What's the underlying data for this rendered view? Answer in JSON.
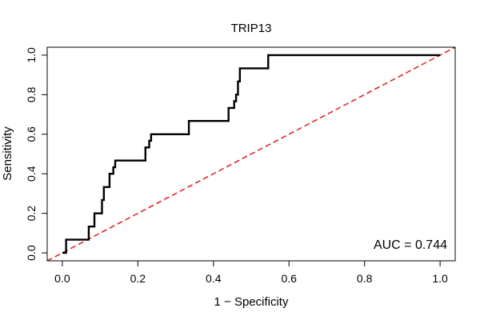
{
  "chart_data": {
    "type": "line",
    "title": "TRIP13",
    "xlabel": "1 − Specificity",
    "ylabel": "Sensitivity",
    "xlim": [
      -0.04,
      1.04
    ],
    "ylim": [
      -0.04,
      1.04
    ],
    "xticks": [
      0.0,
      0.2,
      0.4,
      0.6,
      0.8,
      1.0
    ],
    "xtick_labels": [
      "0.0",
      "0.2",
      "0.4",
      "0.6",
      "0.8",
      "1.0"
    ],
    "yticks": [
      0.0,
      0.2,
      0.4,
      0.6,
      0.8,
      1.0
    ],
    "ytick_labels": [
      "0.0",
      "0.2",
      "0.4",
      "0.6",
      "0.8",
      "1.0"
    ],
    "annotation": "AUC = 0.744",
    "series": [
      {
        "name": "ROC",
        "color": "#000000",
        "style": "solid",
        "x": [
          0.0,
          0.01,
          0.01,
          0.07,
          0.07,
          0.085,
          0.085,
          0.105,
          0.105,
          0.11,
          0.11,
          0.125,
          0.125,
          0.135,
          0.135,
          0.14,
          0.14,
          0.22,
          0.22,
          0.23,
          0.23,
          0.235,
          0.235,
          0.335,
          0.335,
          0.44,
          0.44,
          0.455,
          0.455,
          0.46,
          0.46,
          0.465,
          0.465,
          0.47,
          0.47,
          0.545,
          0.545,
          1.0
        ],
        "y": [
          0.0,
          0.0,
          0.067,
          0.067,
          0.133,
          0.133,
          0.2,
          0.2,
          0.267,
          0.267,
          0.333,
          0.333,
          0.4,
          0.4,
          0.433,
          0.433,
          0.467,
          0.467,
          0.533,
          0.533,
          0.567,
          0.567,
          0.6,
          0.6,
          0.667,
          0.667,
          0.733,
          0.733,
          0.767,
          0.767,
          0.8,
          0.8,
          0.867,
          0.867,
          0.933,
          0.933,
          1.0,
          1.0
        ]
      },
      {
        "name": "Reference",
        "color": "#e31a1c",
        "style": "dashed",
        "x": [
          -0.04,
          1.04
        ],
        "y": [
          -0.04,
          1.04
        ]
      }
    ]
  }
}
